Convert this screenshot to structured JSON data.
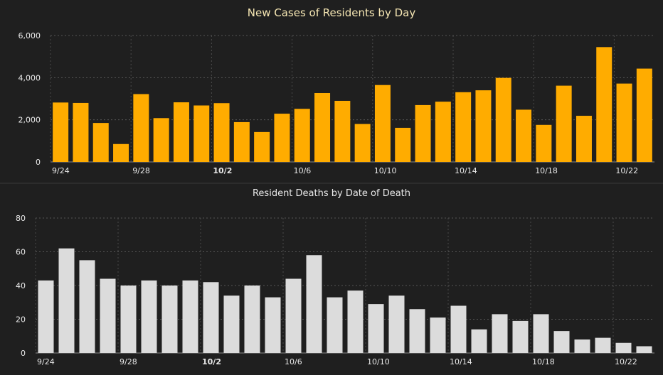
{
  "chart_data": [
    {
      "type": "bar",
      "title": "New Cases of Residents by Day",
      "xlabel": "",
      "ylabel": "",
      "ylim": [
        0,
        6000
      ],
      "yticks": [
        0,
        2000,
        4000,
        6000
      ],
      "ytick_labels": [
        "0",
        "2,000",
        "4,000",
        "6,000"
      ],
      "grid": true,
      "bar_color": "#ffac00",
      "categories": [
        "9/24",
        "9/25",
        "9/26",
        "9/27",
        "9/28",
        "9/29",
        "9/30",
        "10/1",
        "10/2",
        "10/3",
        "10/4",
        "10/5",
        "10/6",
        "10/7",
        "10/8",
        "10/9",
        "10/10",
        "10/11",
        "10/12",
        "10/13",
        "10/14",
        "10/15",
        "10/16",
        "10/17",
        "10/18",
        "10/19",
        "10/20",
        "10/21",
        "10/22",
        "10/23"
      ],
      "values": [
        2820,
        2800,
        1850,
        850,
        3220,
        2080,
        2830,
        2680,
        2790,
        1890,
        1420,
        2290,
        2520,
        3270,
        2900,
        1800,
        3650,
        1620,
        2700,
        2860,
        3310,
        3400,
        3990,
        2480,
        1760,
        3620,
        2190,
        5450,
        3720,
        4430
      ],
      "xtick_labels": [
        {
          "index": 0,
          "label": "9/24"
        },
        {
          "index": 4,
          "label": "9/28"
        },
        {
          "index": 8,
          "label": "10/2"
        },
        {
          "index": 12,
          "label": "10/6"
        },
        {
          "index": 16,
          "label": "10/10"
        },
        {
          "index": 20,
          "label": "10/14"
        },
        {
          "index": 24,
          "label": "10/18"
        },
        {
          "index": 28,
          "label": "10/22"
        }
      ]
    },
    {
      "type": "bar",
      "title": "Resident Deaths by Date of Death",
      "xlabel": "",
      "ylabel": "",
      "ylim": [
        0,
        80
      ],
      "yticks": [
        0,
        20,
        40,
        60,
        80
      ],
      "ytick_labels": [
        "0",
        "20",
        "40",
        "60",
        "80"
      ],
      "grid": true,
      "bar_color": "#dcdcdc",
      "categories": [
        "9/24",
        "9/25",
        "9/26",
        "9/27",
        "9/28",
        "9/29",
        "9/30",
        "10/1",
        "10/2",
        "10/3",
        "10/4",
        "10/5",
        "10/6",
        "10/7",
        "10/8",
        "10/9",
        "10/10",
        "10/11",
        "10/12",
        "10/13",
        "10/14",
        "10/15",
        "10/16",
        "10/17",
        "10/18",
        "10/19",
        "10/20",
        "10/21",
        "10/22",
        "10/23"
      ],
      "values": [
        43,
        62,
        55,
        44,
        40,
        43,
        40,
        43,
        42,
        34,
        40,
        33,
        44,
        58,
        33,
        37,
        29,
        34,
        26,
        21,
        28,
        14,
        23,
        19,
        23,
        13,
        8,
        9,
        6,
        4
      ],
      "xtick_labels": [
        {
          "index": 0,
          "label": "9/24"
        },
        {
          "index": 4,
          "label": "9/28"
        },
        {
          "index": 8,
          "label": "10/2"
        },
        {
          "index": 12,
          "label": "10/6"
        },
        {
          "index": 16,
          "label": "10/10"
        },
        {
          "index": 20,
          "label": "10/14"
        },
        {
          "index": 24,
          "label": "10/18"
        },
        {
          "index": 28,
          "label": "10/22"
        }
      ]
    }
  ]
}
